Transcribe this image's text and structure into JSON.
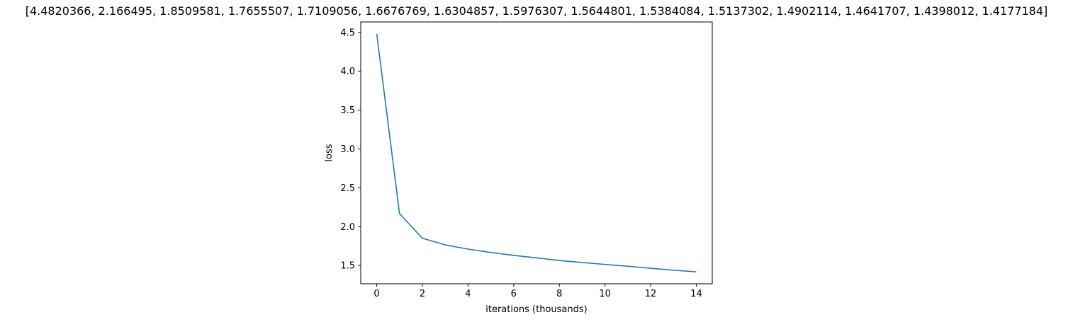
{
  "chart_data": {
    "type": "line",
    "title": "[4.4820366, 2.166495, 1.8509581, 1.7655507, 1.7109056, 1.6676769, 1.6304857, 1.5976307, 1.5644801, 1.5384084, 1.5137302, 1.4902114, 1.4641707, 1.4398012, 1.4177184]",
    "xlabel": "iterations (thousands)",
    "ylabel": "loss",
    "x": [
      0,
      1,
      2,
      3,
      4,
      5,
      6,
      7,
      8,
      9,
      10,
      11,
      12,
      13,
      14
    ],
    "series": [
      {
        "values": [
          4.4820366,
          2.166495,
          1.8509581,
          1.7655507,
          1.7109056,
          1.6676769,
          1.6304857,
          1.5976307,
          1.5644801,
          1.5384084,
          1.5137302,
          1.4902114,
          1.4641707,
          1.4398012,
          1.4177184
        ],
        "color": "#1f77b4"
      }
    ],
    "xticks": [
      0,
      2,
      4,
      6,
      8,
      10,
      12,
      14
    ],
    "xtick_labels": [
      "0",
      "2",
      "4",
      "6",
      "8",
      "10",
      "12",
      "14"
    ],
    "yticks": [
      1.5,
      2.0,
      2.5,
      3.0,
      3.5,
      4.0,
      4.5
    ],
    "ytick_labels": [
      "1.5",
      "2.0",
      "2.5",
      "3.0",
      "3.5",
      "4.0",
      "4.5"
    ],
    "xlim": [
      -0.7,
      14.7
    ],
    "ylim": [
      1.2645,
      4.6353
    ],
    "grid": false,
    "legend": "none"
  }
}
